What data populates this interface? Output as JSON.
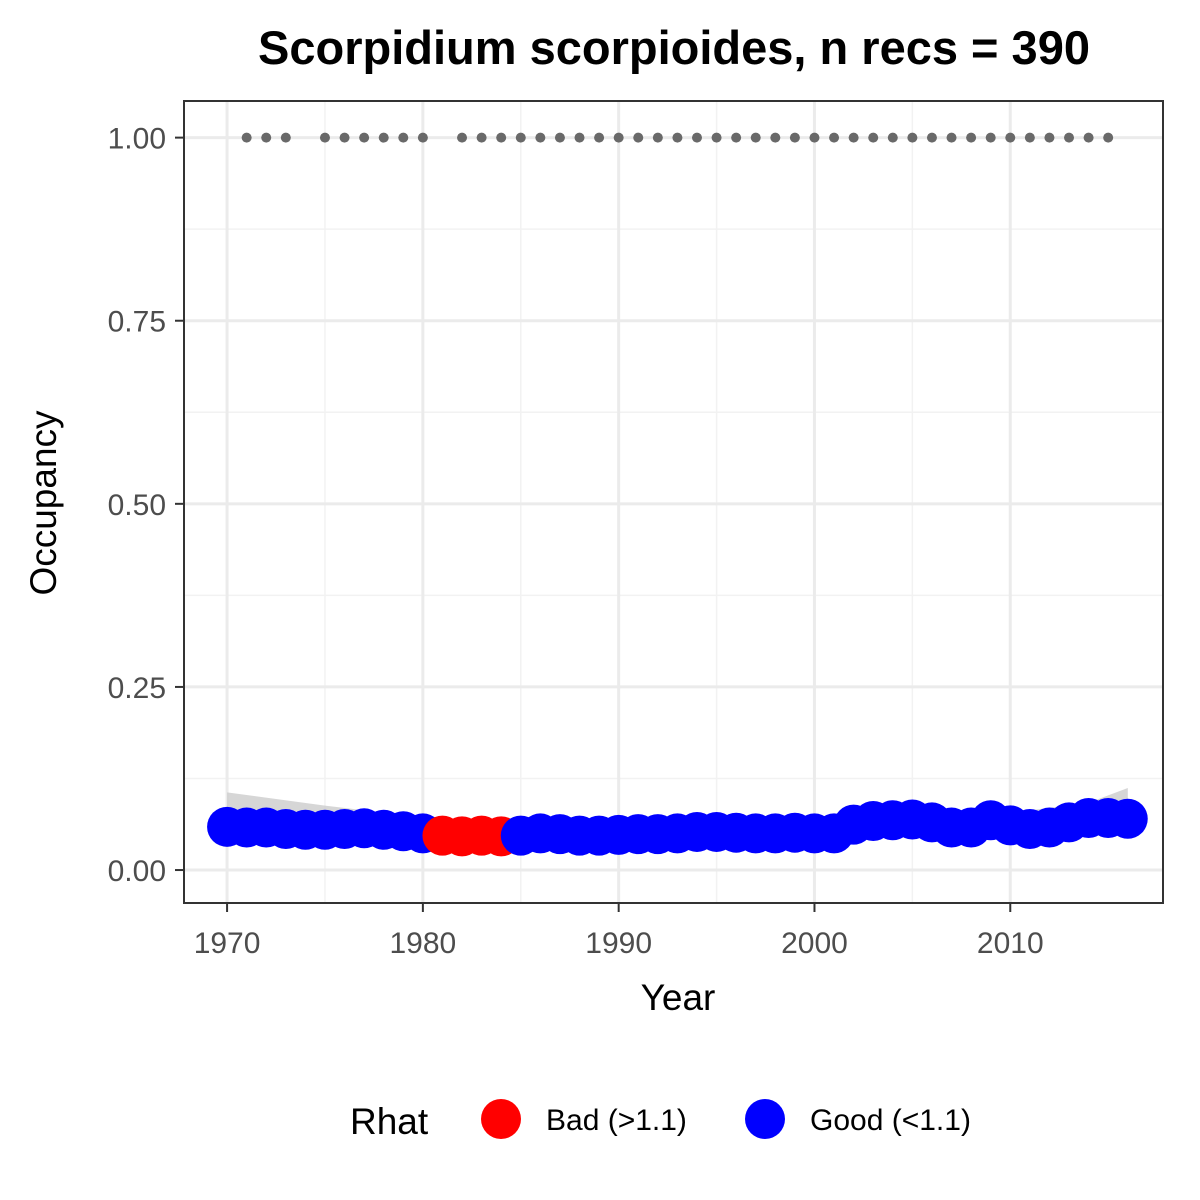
{
  "chart_data": {
    "type": "scatter",
    "title": "Scorpidium scorpioides, n recs = 390",
    "xlabel": "Year",
    "ylabel": "Occupancy",
    "xlim": [
      1967.8,
      2017.8
    ],
    "ylim": [
      -0.045,
      1.05
    ],
    "x_ticks": [
      1970,
      1980,
      1990,
      2000,
      2010
    ],
    "x_tick_labels": [
      "1970",
      "1980",
      "1990",
      "2000",
      "2010"
    ],
    "y_ticks": [
      0,
      0.25,
      0.5,
      0.75,
      1
    ],
    "y_tick_labels": [
      "0.00",
      "0.25",
      "0.50",
      "0.75",
      "1.00"
    ],
    "grid": true,
    "legend": {
      "title": "Rhat",
      "position": "bottom",
      "entries": [
        {
          "label": "Bad (>1.1)",
          "color": "#ff0000"
        },
        {
          "label": "Good (<1.1)",
          "color": "#0000ff"
        }
      ]
    },
    "record_years": [
      1971,
      1972,
      1973,
      1975,
      1976,
      1977,
      1978,
      1979,
      1980,
      1982,
      1983,
      1984,
      1985,
      1986,
      1987,
      1988,
      1989,
      1990,
      1991,
      1992,
      1993,
      1994,
      1995,
      1996,
      1997,
      1998,
      1999,
      2000,
      2001,
      2002,
      2003,
      2004,
      2005,
      2006,
      2007,
      2008,
      2009,
      2010,
      2011,
      2012,
      2013,
      2014,
      2015
    ],
    "record_value": 1.0,
    "record_color": "#696969",
    "series": [
      {
        "name": "Occupancy",
        "x": [
          1970,
          1971,
          1972,
          1973,
          1974,
          1975,
          1976,
          1977,
          1978,
          1979,
          1980,
          1981,
          1982,
          1983,
          1984,
          1985,
          1986,
          1987,
          1988,
          1989,
          1990,
          1991,
          1992,
          1993,
          1994,
          1995,
          1996,
          1997,
          1998,
          1999,
          2000,
          2001,
          2002,
          2003,
          2004,
          2005,
          2006,
          2007,
          2008,
          2009,
          2010,
          2011,
          2012,
          2013,
          2014,
          2015,
          2016
        ],
        "y": [
          0.059,
          0.058,
          0.058,
          0.056,
          0.055,
          0.055,
          0.056,
          0.057,
          0.055,
          0.053,
          0.05,
          0.047,
          0.046,
          0.047,
          0.046,
          0.047,
          0.05,
          0.049,
          0.047,
          0.047,
          0.048,
          0.049,
          0.049,
          0.05,
          0.052,
          0.052,
          0.051,
          0.05,
          0.05,
          0.051,
          0.05,
          0.05,
          0.062,
          0.067,
          0.068,
          0.069,
          0.065,
          0.058,
          0.058,
          0.068,
          0.061,
          0.056,
          0.058,
          0.065,
          0.071,
          0.071,
          0.07
        ],
        "rhat": [
          "good",
          "good",
          "good",
          "good",
          "good",
          "good",
          "good",
          "good",
          "good",
          "good",
          "good",
          "bad",
          "bad",
          "bad",
          "bad",
          "good",
          "good",
          "good",
          "good",
          "good",
          "good",
          "good",
          "good",
          "good",
          "good",
          "good",
          "good",
          "good",
          "good",
          "good",
          "good",
          "good",
          "good",
          "good",
          "good",
          "good",
          "good",
          "good",
          "good",
          "good",
          "good",
          "good",
          "good",
          "good",
          "good",
          "good",
          "good"
        ]
      }
    ],
    "smooth_band": {
      "color": "#cccccc",
      "x": [
        1970,
        1975,
        1980,
        1985,
        1990,
        1995,
        2000,
        2005,
        2010,
        2014,
        2016
      ],
      "lower": [
        0.035,
        0.042,
        0.04,
        0.039,
        0.042,
        0.046,
        0.048,
        0.053,
        0.055,
        0.058,
        0.05
      ],
      "upper": [
        0.106,
        0.088,
        0.072,
        0.062,
        0.06,
        0.06,
        0.062,
        0.068,
        0.078,
        0.092,
        0.112
      ]
    }
  }
}
